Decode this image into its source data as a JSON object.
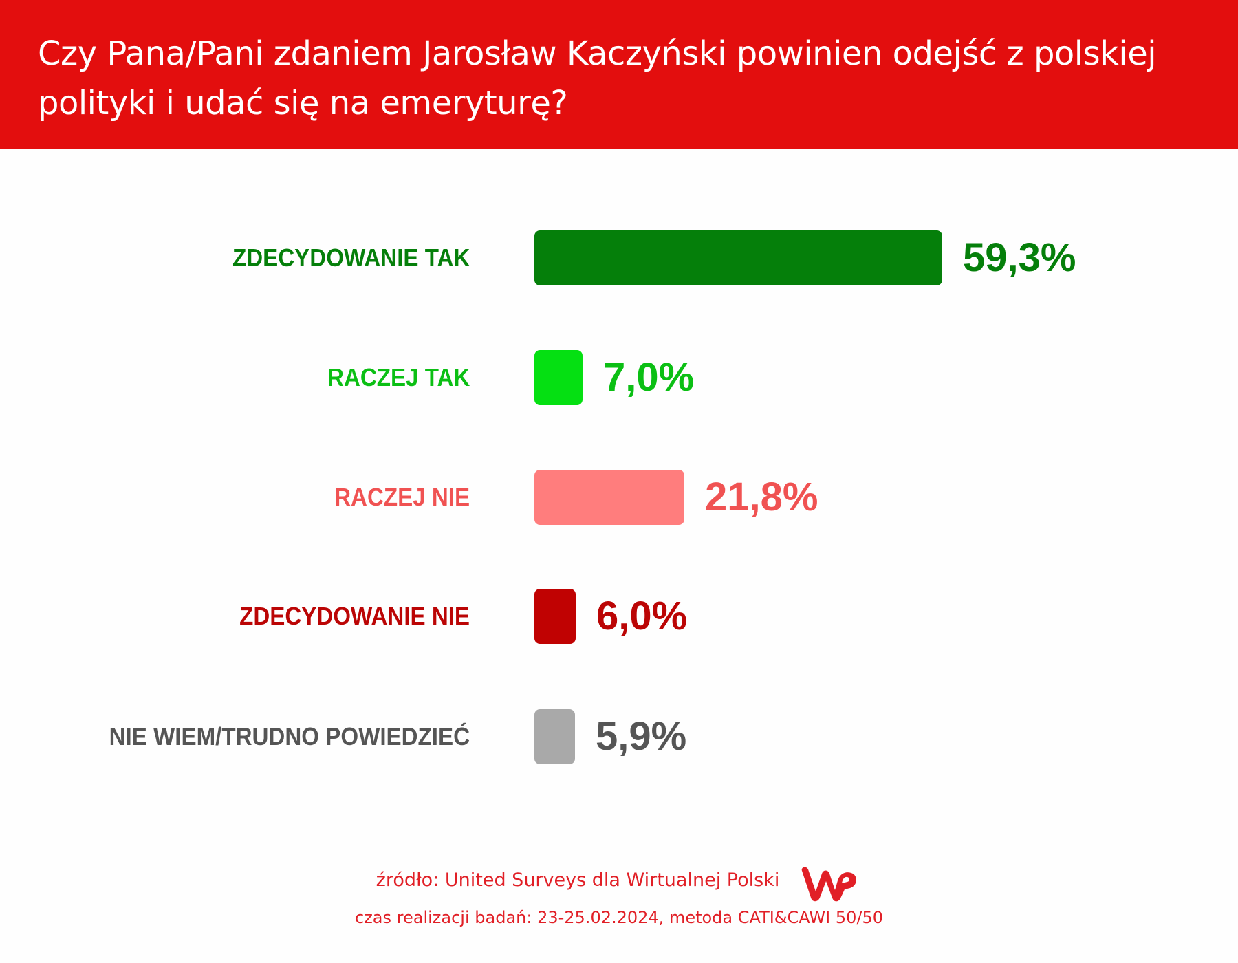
{
  "header": {
    "title": "Czy Pana/Pani zdaniem Jarosław Kaczyński powinien odejść z polskiej polityki i udać się na emeryturę?",
    "background_color": "#e30e0e"
  },
  "rows": [
    {
      "label": "ZDECYDOWANIE TAK",
      "value": "59,3%",
      "bar_color": "#057f0a",
      "text_color": "#057f0a"
    },
    {
      "label": "RACZEJ TAK",
      "value": "7,0%",
      "bar_color": "#05e012",
      "text_color": "#0bbf14"
    },
    {
      "label": "RACZEJ NIE",
      "value": "21,8%",
      "bar_color": "#ff7d7d",
      "text_color": "#f05252"
    },
    {
      "label": "ZDECYDOWANIE NIE",
      "value": "6,0%",
      "bar_color": "#c00202",
      "text_color": "#bb0505"
    },
    {
      "label": "NIE WIEM/TRUDNO POWIEDZIEĆ",
      "value": "5,9%",
      "bar_color": "#a9a9a9",
      "text_color": "#555555"
    }
  ],
  "footer": {
    "source": "źródło: United Surveys dla Wirtualnej Polski",
    "fieldwork": "czas realizacji badań: 23-25.02.2024, metoda CATI&CAWI 50/50",
    "logo": "wp-logo",
    "color": "#e11f26"
  },
  "chart_data": {
    "type": "bar",
    "orientation": "horizontal",
    "title": "Czy Pana/Pani zdaniem Jarosław Kaczyński powinien odejść z polskiej polityki i udać się na emeryturę?",
    "categories": [
      "ZDECYDOWANIE TAK",
      "RACZEJ TAK",
      "RACZEJ NIE",
      "ZDECYDOWANIE NIE",
      "NIE WIEM/TRUDNO POWIEDZIEĆ"
    ],
    "values": [
      59.3,
      7.0,
      21.8,
      6.0,
      5.9
    ],
    "value_labels": [
      "59,3%",
      "7,0%",
      "21,8%",
      "6,0%",
      "5,9%"
    ],
    "colors": [
      "#057f0a",
      "#05e012",
      "#ff7d7d",
      "#c00202",
      "#a9a9a9"
    ],
    "unit": "%",
    "xlabel": "",
    "ylabel": "",
    "grid": false,
    "legend": "none",
    "annotations": [
      "źródło: United Surveys dla Wirtualnej Polski",
      "czas realizacji badań: 23-25.02.2024, metoda CATI&CAWI 50/50"
    ]
  }
}
